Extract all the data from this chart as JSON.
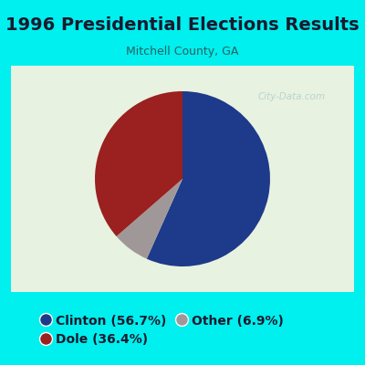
{
  "title": "1996 Presidential Elections Results",
  "subtitle": "Mitchell County, GA",
  "labels": [
    "Clinton",
    "Dole",
    "Other"
  ],
  "values": [
    56.7,
    36.4,
    6.9
  ],
  "colors": [
    "#1e3a8a",
    "#9b2020",
    "#a09898"
  ],
  "legend_labels": [
    "Clinton (56.7%)",
    "Dole (36.4%)",
    "Other (6.9%)"
  ],
  "background_color": "#00efef",
  "chart_bg_color": "#e8f2e0",
  "title_color": "#1a1a2e",
  "subtitle_color": "#2a6060",
  "watermark": "City-Data.com",
  "startangle": 90,
  "pie_order": [
    0,
    2,
    1
  ],
  "legend_fontsize": 10,
  "title_fontsize": 14
}
